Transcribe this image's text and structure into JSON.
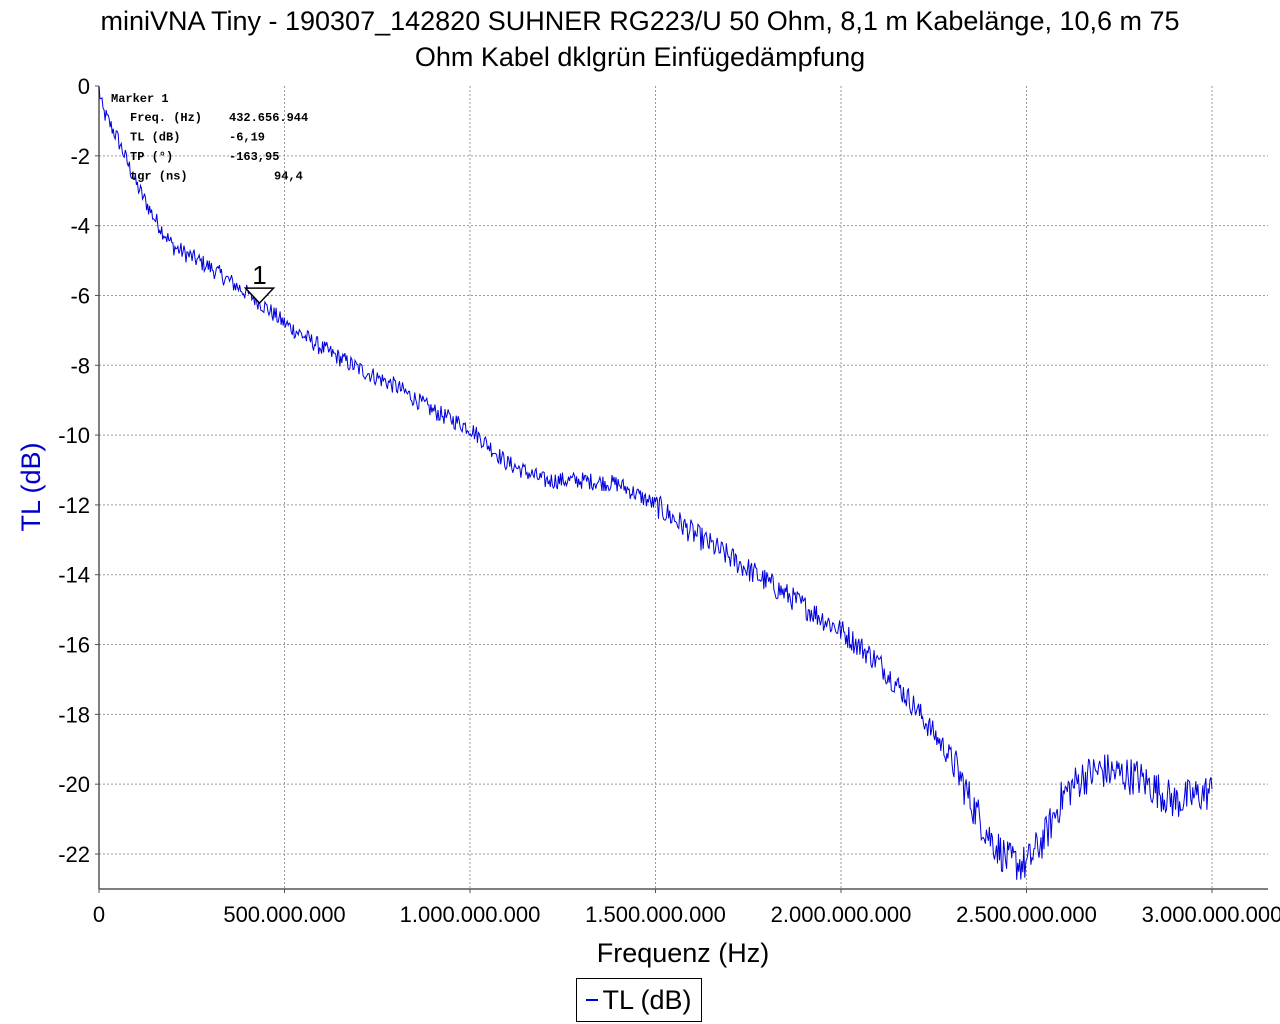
{
  "title_line1": "miniVNA Tiny - 190307_142820 SUHNER RG223/U 50 Ohm, 8,1 m Kabelänge,  10,6 m 75",
  "title_line2": "Ohm Kabel dklgrün Einfügedämpfung",
  "chart_data": {
    "type": "line",
    "xlabel": "Frequenz (Hz)",
    "ylabel": "TL (dB)",
    "xlim": [
      0,
      3000000000
    ],
    "ylim": [
      -23,
      0
    ],
    "x_ticks": [
      0,
      500000000,
      1000000000,
      1500000000,
      2000000000,
      2500000000,
      3000000000
    ],
    "x_tick_labels": [
      "0",
      "500.000.000",
      "1.000.000.000",
      "1.500.000.000",
      "2.000.000.000",
      "2.500.000.000",
      "3.000.000.000"
    ],
    "y_ticks": [
      0,
      -2,
      -4,
      -6,
      -8,
      -10,
      -12,
      -14,
      -16,
      -18,
      -20,
      -22
    ],
    "y_tick_labels": [
      "0",
      "-2",
      "-4",
      "-6",
      "-8",
      "-10",
      "-12",
      "-14",
      "-16",
      "-18",
      "-20",
      "-22"
    ],
    "grid": true,
    "legend_position": "bottom-center",
    "series_color": "#0000dd",
    "ylabel_color": "#0000cc",
    "series": [
      {
        "name": "TL (dB)",
        "x": [
          0,
          10000000,
          50000000,
          100000000,
          150000000,
          200000000,
          300000000,
          432656944,
          500000000,
          600000000,
          700000000,
          800000000,
          900000000,
          1000000000,
          1100000000,
          1200000000,
          1300000000,
          1400000000,
          1500000000,
          1600000000,
          1700000000,
          1800000000,
          1900000000,
          2000000000,
          2100000000,
          2200000000,
          2300000000,
          2350000000,
          2400000000,
          2450000000,
          2500000000,
          2550000000,
          2600000000,
          2650000000,
          2700000000,
          2800000000,
          2900000000,
          3000000000
        ],
        "y": [
          -0.1,
          -0.7,
          -1.5,
          -2.8,
          -3.8,
          -4.6,
          -5.2,
          -6.19,
          -6.8,
          -7.5,
          -8.1,
          -8.6,
          -9.3,
          -9.8,
          -10.8,
          -11.3,
          -11.3,
          -11.4,
          -12.0,
          -12.8,
          -13.5,
          -14.2,
          -14.9,
          -15.6,
          -16.5,
          -17.8,
          -19.3,
          -20.5,
          -21.5,
          -22.2,
          -22.3,
          -21.5,
          -20.3,
          -19.8,
          -19.6,
          -19.8,
          -20.5,
          -20.2
        ]
      }
    ],
    "marker": {
      "label": "1",
      "title": "Marker 1",
      "x": 432656944,
      "y": -6.19,
      "rows": [
        {
          "name": "Freq. (Hz)",
          "value": "432.656.944"
        },
        {
          "name": "TL (dB)",
          "value": "-6,19"
        },
        {
          "name": "TP (°)",
          "value": "-163,95"
        },
        {
          "name": "tgr (ns)",
          "value": "94,4"
        }
      ]
    }
  }
}
